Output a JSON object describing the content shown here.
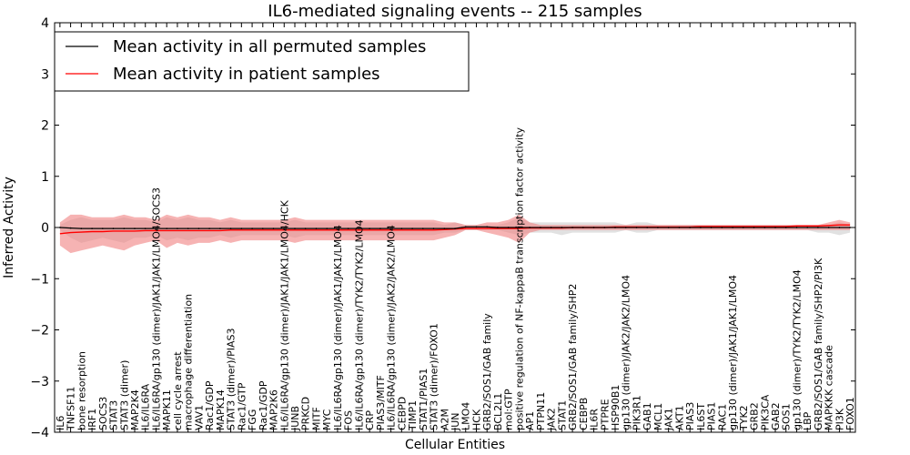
{
  "chart_data": {
    "type": "line",
    "title": "IL6-mediated signaling events -- 215 samples",
    "xlabel": "Cellular Entities",
    "ylabel": "Inferred Activity",
    "ylim": [
      -4,
      4
    ],
    "yticks": [
      -4,
      -3,
      -2,
      -1,
      0,
      1,
      2,
      3,
      4
    ],
    "grid": false,
    "legend_position": "top-left",
    "colors": {
      "permuted": "#000000",
      "patient": "#ff0000",
      "patient_band": "#f08080",
      "permuted_band": "#c8c8c8"
    },
    "categories": [
      "IL6",
      "TNFSF11",
      "bone resorption",
      "IRF1",
      "SOCS3",
      "STAT3",
      "STAT3 (dimer)",
      "MAP2K4",
      "IL6/IL6RA",
      "IL6/IL6RA/gp130 (dimer)/JAK1/JAK1/LMO4/SOCS3",
      "MAPK11",
      "cell cycle arrest",
      "macrophage differentiation",
      "VAV1",
      "Rac1/GDP",
      "MAPK14",
      "STAT3 (dimer)/PIAS3",
      "Rac1/GTP",
      "FGG",
      "Rac1/GDP",
      "MAP2K6",
      "IL6/IL6RA/gp130 (dimer)/JAK1/JAK1/LMO4/HCK",
      "JUNB",
      "PRKCD",
      "MITF",
      "MYC",
      "IL6/IL6RA/gp130 (dimer)/JAK1/JAK1/LMO4",
      "FOS",
      "IL6/IL6RA/gp130 (dimer)/TYK2/TYK2/LMO4",
      "CRP",
      "PIAS3/MITF",
      "IL6/IL6RA/gp130 (dimer)/JAK2/JAK2/LMO4",
      "CEBPD",
      "TIMP1",
      "STAT1/PIAS1",
      "STAT3 (dimer)/FOXO1",
      "A2M",
      "JUN",
      "LMO4",
      "HCK",
      "GRB2/SOS1/GAB family",
      "BCL2L1",
      "mol:GTP",
      "positive regulation of NF-kappaB transcription factor activity",
      "AP1",
      "PTPN11",
      "JAK2",
      "STAT1",
      "GRB2/SOS1/GAB family/SHP2",
      "CEBPB",
      "IL6R",
      "PTPRE",
      "HSP90B1",
      "gp130 (dimer)/JAK2/JAK2/LMO4",
      "PIK3R1",
      "GAB1",
      "MCL1",
      "JAK1",
      "AKT1",
      "PIAS3",
      "IL6ST",
      "PIAS1",
      "RAC1",
      "gp130 (dimer)/JAK1/JAK1/LMO4",
      "TYK2",
      "GRB2",
      "PIK3CA",
      "GAB2",
      "SOS1",
      "gp130 (dimer)/TYK2/TYK2/LMO4",
      "LBP",
      "GRB2/SOS1/GAB family/SHP2/PI3K",
      "MAPKKK cascade",
      "PI3K",
      "FOXO1"
    ],
    "series": [
      {
        "name": "Mean activity in all permuted samples",
        "color": "#000000",
        "values": [
          0.0,
          -0.01,
          -0.02,
          -0.02,
          -0.02,
          -0.02,
          -0.02,
          -0.02,
          -0.02,
          -0.02,
          -0.02,
          -0.02,
          -0.02,
          -0.02,
          -0.02,
          -0.02,
          -0.02,
          -0.02,
          -0.02,
          -0.02,
          -0.02,
          -0.02,
          -0.02,
          -0.02,
          -0.02,
          -0.02,
          -0.02,
          -0.02,
          -0.02,
          -0.02,
          -0.02,
          -0.02,
          -0.02,
          -0.02,
          -0.02,
          -0.02,
          -0.02,
          -0.02,
          0.01,
          0.01,
          0.01,
          0.0,
          0.0,
          0.0,
          0.0,
          0.0,
          0.0,
          0.0,
          0.0,
          0.0,
          0.0,
          0.0,
          0.0,
          0.0,
          0.0,
          0.0,
          0.0,
          0.0,
          0.0,
          0.0,
          0.0,
          0.0,
          0.0,
          0.0,
          0.0,
          0.0,
          0.0,
          0.0,
          0.0,
          0.0,
          0.0,
          0.0,
          0.0,
          0.0,
          0.0
        ],
        "band_upper": [
          0.05,
          0.15,
          0.2,
          0.15,
          0.15,
          0.15,
          0.2,
          0.15,
          0.15,
          0.1,
          0.2,
          0.15,
          0.2,
          0.15,
          0.15,
          0.1,
          0.15,
          0.1,
          0.1,
          0.1,
          0.1,
          0.1,
          0.15,
          0.1,
          0.1,
          0.1,
          0.1,
          0.1,
          0.1,
          0.1,
          0.1,
          0.1,
          0.1,
          0.1,
          0.1,
          0.1,
          0.05,
          0.1,
          0.05,
          0.05,
          0.05,
          0.05,
          0.1,
          0.2,
          0.1,
          0.1,
          0.1,
          0.1,
          0.1,
          0.1,
          0.1,
          0.1,
          0.1,
          0.05,
          0.1,
          0.1,
          0.05,
          0.05,
          0.05,
          0.05,
          0.05,
          0.05,
          0.05,
          0.05,
          0.05,
          0.05,
          0.05,
          0.05,
          0.05,
          0.05,
          0.05,
          0.05,
          0.05,
          0.1,
          0.05
        ],
        "band_lower": [
          -0.05,
          -0.2,
          -0.3,
          -0.25,
          -0.2,
          -0.25,
          -0.3,
          -0.2,
          -0.2,
          -0.15,
          -0.25,
          -0.2,
          -0.25,
          -0.2,
          -0.2,
          -0.15,
          -0.2,
          -0.15,
          -0.15,
          -0.15,
          -0.15,
          -0.15,
          -0.2,
          -0.15,
          -0.15,
          -0.15,
          -0.15,
          -0.15,
          -0.15,
          -0.15,
          -0.15,
          -0.15,
          -0.15,
          -0.15,
          -0.15,
          -0.15,
          -0.1,
          -0.1,
          -0.05,
          -0.05,
          -0.05,
          -0.05,
          -0.1,
          -0.15,
          -0.1,
          -0.1,
          -0.1,
          -0.15,
          -0.1,
          -0.1,
          -0.1,
          -0.1,
          -0.1,
          -0.05,
          -0.1,
          -0.1,
          -0.05,
          -0.05,
          -0.05,
          -0.05,
          -0.05,
          -0.05,
          -0.05,
          -0.05,
          -0.05,
          -0.05,
          -0.05,
          -0.05,
          -0.05,
          -0.05,
          -0.05,
          -0.1,
          -0.1,
          -0.15,
          -0.1
        ]
      },
      {
        "name": "Mean activity in patient samples",
        "color": "#ff0000",
        "values": [
          -0.12,
          -0.1,
          -0.09,
          -0.08,
          -0.08,
          -0.07,
          -0.07,
          -0.07,
          -0.06,
          -0.06,
          -0.06,
          -0.06,
          -0.06,
          -0.06,
          -0.06,
          -0.06,
          -0.05,
          -0.05,
          -0.05,
          -0.05,
          -0.05,
          -0.05,
          -0.05,
          -0.05,
          -0.05,
          -0.05,
          -0.05,
          -0.05,
          -0.05,
          -0.05,
          -0.05,
          -0.05,
          -0.05,
          -0.05,
          -0.05,
          -0.05,
          -0.04,
          -0.03,
          -0.02,
          -0.02,
          -0.02,
          -0.02,
          -0.02,
          -0.02,
          -0.01,
          -0.01,
          -0.01,
          -0.01,
          0.0,
          0.0,
          0.0,
          0.0,
          0.01,
          0.01,
          0.01,
          0.01,
          0.01,
          0.01,
          0.01,
          0.01,
          0.02,
          0.02,
          0.02,
          0.02,
          0.02,
          0.02,
          0.02,
          0.02,
          0.02,
          0.03,
          0.03,
          0.03,
          0.04,
          0.05,
          0.05
        ],
        "band_upper": [
          0.1,
          0.25,
          0.25,
          0.2,
          0.2,
          0.2,
          0.25,
          0.2,
          0.2,
          0.15,
          0.25,
          0.2,
          0.25,
          0.2,
          0.2,
          0.15,
          0.2,
          0.15,
          0.15,
          0.15,
          0.15,
          0.15,
          0.2,
          0.15,
          0.15,
          0.15,
          0.15,
          0.15,
          0.15,
          0.15,
          0.15,
          0.15,
          0.15,
          0.15,
          0.15,
          0.15,
          0.1,
          0.1,
          0.05,
          0.05,
          0.1,
          0.1,
          0.15,
          0.25,
          0.1,
          0.05,
          0.05,
          0.05,
          0.05,
          0.05,
          0.05,
          0.05,
          0.05,
          0.05,
          0.05,
          0.05,
          0.05,
          0.05,
          0.05,
          0.05,
          0.05,
          0.05,
          0.05,
          0.05,
          0.05,
          0.05,
          0.05,
          0.05,
          0.05,
          0.05,
          0.05,
          0.05,
          0.1,
          0.15,
          0.1
        ],
        "band_lower": [
          -0.35,
          -0.5,
          -0.45,
          -0.4,
          -0.35,
          -0.4,
          -0.45,
          -0.35,
          -0.3,
          -0.25,
          -0.4,
          -0.3,
          -0.35,
          -0.3,
          -0.3,
          -0.25,
          -0.3,
          -0.25,
          -0.25,
          -0.25,
          -0.25,
          -0.25,
          -0.3,
          -0.25,
          -0.25,
          -0.25,
          -0.25,
          -0.25,
          -0.25,
          -0.25,
          -0.25,
          -0.25,
          -0.25,
          -0.25,
          -0.25,
          -0.25,
          -0.2,
          -0.15,
          -0.05,
          -0.05,
          -0.1,
          -0.15,
          -0.2,
          -0.3,
          -0.1,
          -0.05,
          -0.05,
          -0.05,
          -0.05,
          -0.05,
          -0.05,
          -0.05,
          -0.05,
          -0.05,
          -0.05,
          -0.05,
          -0.05,
          -0.05,
          -0.05,
          -0.05,
          -0.05,
          -0.05,
          -0.05,
          -0.05,
          -0.05,
          -0.05,
          -0.05,
          -0.05,
          -0.05,
          -0.05,
          -0.05,
          -0.05,
          -0.05,
          -0.05,
          -0.05
        ]
      }
    ]
  }
}
